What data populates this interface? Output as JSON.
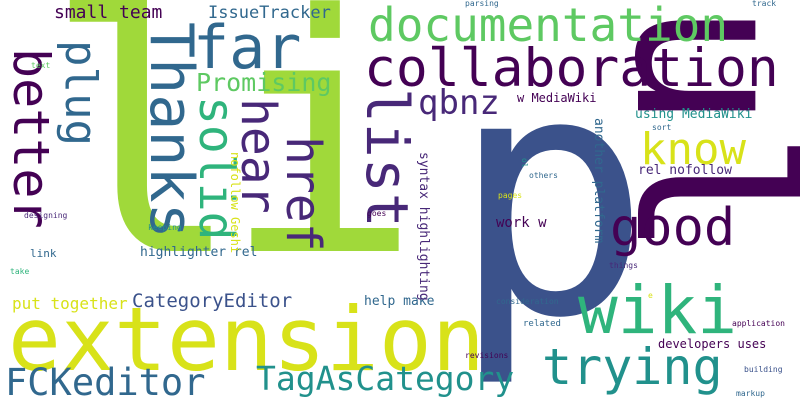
{
  "palette": {
    "lime": "#a0d93a",
    "blue": "#3b528b",
    "purple": "#440154",
    "teal": "#21918c",
    "green": "#5ec962",
    "yellow": "#d8e219",
    "darkblue": "#31688e",
    "indigo": "#482878",
    "seagreen": "#2fb47c"
  },
  "words": {
    "li": "li",
    "p": "p",
    "ul": "ul",
    "extension": "extension",
    "documentation": "documentation",
    "collaboration": "collaboration",
    "far": "far",
    "list": "list",
    "wiki": "wiki",
    "trying": "trying",
    "fckeditor": "FCKeditor",
    "tagascategory": "TagAsCategory",
    "good": "good",
    "know": "know",
    "qbnz": "qbnz",
    "better": "better",
    "plug": "plug",
    "thanks": "Thanks",
    "solid": "solid",
    "hear": "hear",
    "href": "href",
    "promising": "Promising",
    "small_team": "small team",
    "issuetracker": "IssueTracker",
    "categoryeditor": "CategoryEditor",
    "put_together": "put together",
    "help_make": "help make",
    "developers_uses": "developers uses",
    "highlighter_rel": "highlighter rel",
    "w_mediawiki": "w MediaWiki",
    "using_mediawiki": "using MediaWiki",
    "rel_nofollow": "rel nofollow",
    "work_w": "work w",
    "nofollow_geshi": "nofollow Geshi",
    "syntax_highlighting": "syntax highlighting",
    "another_platform": "another platform",
    "link": "link",
    "designing": "designing",
    "keeping": "keeping",
    "take": "take",
    "text": "text",
    "parsing": "parsing",
    "track": "track",
    "sort": "sort",
    "ol": "ol",
    "others": "others",
    "pages": "pages",
    "goes": "goes",
    "things": "things",
    "consideration": "consideration",
    "related": "related",
    "application": "application",
    "revisions": "revisions",
    "building": "building",
    "markup": "markup",
    "e": "e"
  }
}
